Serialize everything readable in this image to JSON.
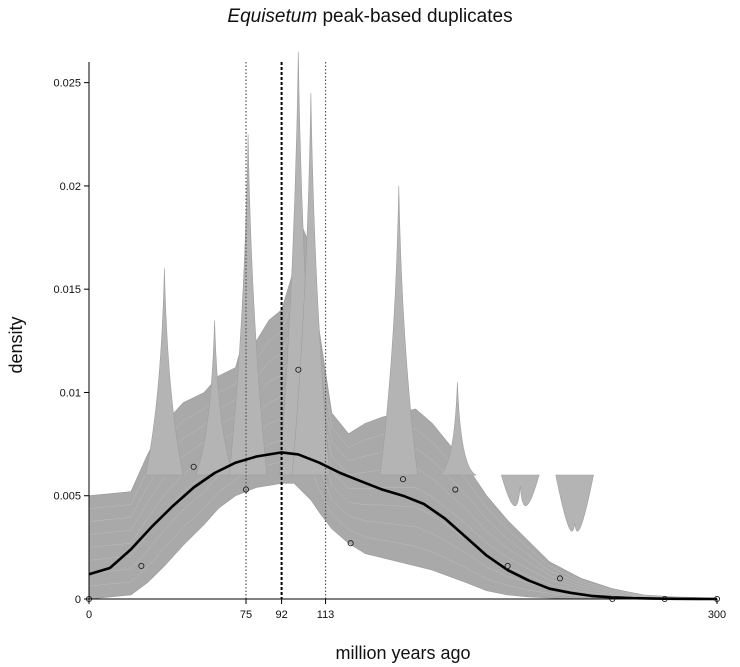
{
  "title_italic": "Equisetum",
  "title_rest": " peak-based duplicates",
  "chart_data": {
    "type": "line",
    "title": "Equisetum peak-based duplicates",
    "xlabel": "million years ago",
    "ylabel": "density",
    "xlim": [
      0,
      300
    ],
    "ylim": [
      0,
      0.026
    ],
    "x_ticks": [
      0,
      75,
      92,
      113,
      300
    ],
    "y_ticks": [
      0,
      0.005,
      0.01,
      0.015,
      0.02,
      0.025
    ],
    "y_tick_labels": [
      "0",
      "0.005",
      "0.01",
      "0.015",
      "0.02",
      "0.025"
    ],
    "grid": false,
    "vertical_lines": [
      {
        "x": 75,
        "style": "dotted-grey"
      },
      {
        "x": 92,
        "style": "dashed-black"
      },
      {
        "x": 113,
        "style": "dotted-grey"
      }
    ],
    "bootstrap_envelope": {
      "description": "grey bundle of bootstrap density curves",
      "x": [
        0,
        10,
        20,
        28,
        36,
        45,
        55,
        62,
        70,
        75,
        80,
        86,
        92,
        98,
        102,
        106,
        110,
        116,
        124,
        132,
        140,
        148,
        156,
        164,
        172,
        180,
        190,
        200,
        210,
        220,
        235,
        250,
        265,
        280,
        300
      ],
      "lower": [
        0,
        0.0001,
        0.0002,
        0.0008,
        0.0016,
        0.0026,
        0.0036,
        0.0044,
        0.005,
        0.0052,
        0.0054,
        0.0055,
        0.0056,
        0.0056,
        0.0052,
        0.0048,
        0.0042,
        0.0034,
        0.0027,
        0.0022,
        0.002,
        0.0018,
        0.0016,
        0.0014,
        0.0011,
        0.0008,
        0.0004,
        0.0002,
        0.0001,
        5e-05,
        0,
        0,
        0,
        0,
        0
      ],
      "upper": [
        0.005,
        0.0051,
        0.0052,
        0.007,
        0.0085,
        0.0095,
        0.01,
        0.0108,
        0.0112,
        0.013,
        0.0125,
        0.0135,
        0.014,
        0.016,
        0.018,
        0.017,
        0.013,
        0.009,
        0.008,
        0.0085,
        0.0088,
        0.009,
        0.0092,
        0.0085,
        0.0075,
        0.0065,
        0.005,
        0.0038,
        0.0028,
        0.0018,
        0.001,
        0.0005,
        0.0002,
        0.0001,
        5e-05
      ]
    },
    "bootstrap_spikes": [
      {
        "x": 36,
        "y": 0.016
      },
      {
        "x": 60,
        "y": 0.0135
      },
      {
        "x": 76,
        "y": 0.0225
      },
      {
        "x": 100,
        "y": 0.0265
      },
      {
        "x": 106,
        "y": 0.0245
      },
      {
        "x": 148,
        "y": 0.02
      },
      {
        "x": 176,
        "y": 0.0105
      },
      {
        "x": 206,
        "y": 0.0055
      },
      {
        "x": 232,
        "y": 0.0037
      }
    ],
    "series": [
      {
        "role": "mean-density-curve",
        "x": [
          0,
          10,
          20,
          30,
          40,
          50,
          60,
          70,
          80,
          92,
          100,
          110,
          120,
          130,
          140,
          150,
          160,
          170,
          180,
          190,
          200,
          210,
          220,
          230,
          240,
          250,
          260,
          270,
          280,
          290,
          300
        ],
        "values": [
          0.0012,
          0.0015,
          0.0024,
          0.0035,
          0.0045,
          0.0054,
          0.0061,
          0.0066,
          0.0069,
          0.0071,
          0.007,
          0.0066,
          0.0061,
          0.0057,
          0.0053,
          0.005,
          0.0046,
          0.0039,
          0.003,
          0.0021,
          0.0014,
          0.0009,
          0.0005,
          0.0003,
          0.00015,
          8e-05,
          4e-05,
          2e-05,
          1e-05,
          5e-06,
          0
        ]
      }
    ],
    "histogram_points": [
      {
        "x": 0,
        "y": 0
      },
      {
        "x": 25,
        "y": 0.0016
      },
      {
        "x": 50,
        "y": 0.0064
      },
      {
        "x": 75,
        "y": 0.0053
      },
      {
        "x": 100,
        "y": 0.0111
      },
      {
        "x": 125,
        "y": 0.0027
      },
      {
        "x": 150,
        "y": 0.0058
      },
      {
        "x": 175,
        "y": 0.0053
      },
      {
        "x": 200,
        "y": 0.0016
      },
      {
        "x": 225,
        "y": 0.001
      },
      {
        "x": 250,
        "y": 0
      },
      {
        "x": 275,
        "y": 0
      },
      {
        "x": 300,
        "y": 0
      }
    ]
  }
}
